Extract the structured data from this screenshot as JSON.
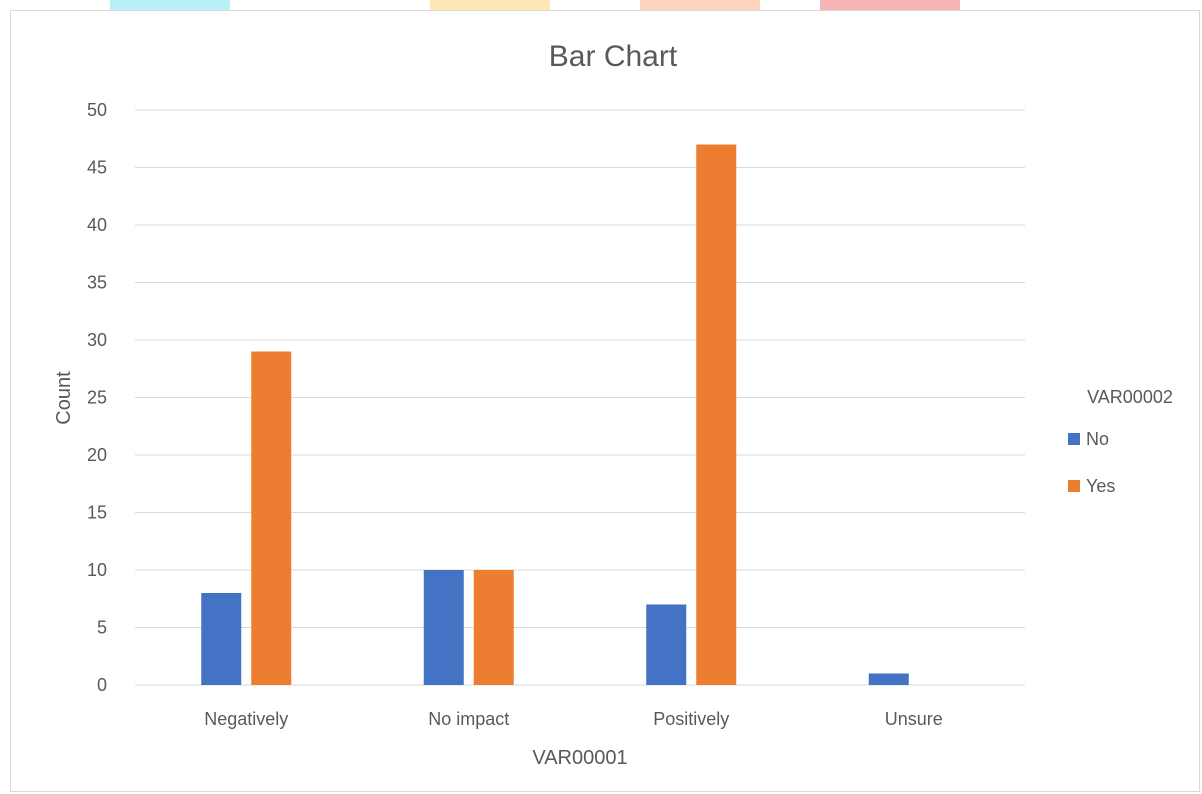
{
  "chart_data": {
    "type": "bar",
    "title": "Bar Chart",
    "xlabel": "VAR00001",
    "ylabel": "Count",
    "categories": [
      "Negatively",
      "No impact",
      "Positively",
      "Unsure"
    ],
    "series": [
      {
        "name": "No",
        "values": [
          8,
          10,
          7,
          1
        ],
        "color": "#4472C4"
      },
      {
        "name": "Yes",
        "values": [
          29,
          10,
          47,
          0
        ],
        "color": "#ED7D31"
      }
    ],
    "ylim": [
      0,
      50
    ],
    "yticks": [
      "0",
      "5",
      "10",
      "15",
      "20",
      "25",
      "30",
      "35",
      "40",
      "45",
      "50"
    ],
    "grid": true,
    "legend": {
      "title": "VAR00002",
      "position": "right"
    }
  },
  "colors": {
    "gridline": "#d9d9d9",
    "text": "#595959"
  }
}
